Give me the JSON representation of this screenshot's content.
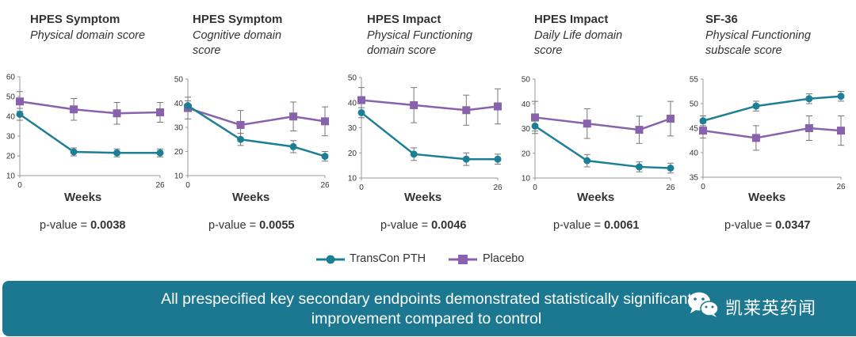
{
  "colors": {
    "transcon": "#1d7f96",
    "placebo": "#8862ad",
    "axis": "#999999",
    "text": "#333333",
    "banner": "#1c7891"
  },
  "chart_data": [
    {
      "type": "line",
      "title": "HPES Symptom",
      "subtitle": "Physical domain score",
      "xlabel": "Weeks",
      "xticks": [
        "0",
        "26"
      ],
      "ylim": [
        10,
        60
      ],
      "yticks": [
        10,
        20,
        30,
        40,
        50,
        60
      ],
      "p_label": "p-value =",
      "p_value": "0.0038",
      "series": [
        {
          "name": "TransCon PTH",
          "x": [
            0,
            10,
            18,
            26
          ],
          "values": [
            41,
            22,
            21.5,
            21.5
          ],
          "err": [
            3,
            2,
            2,
            2
          ]
        },
        {
          "name": "Placebo",
          "x": [
            0,
            10,
            18,
            26
          ],
          "values": [
            47.5,
            43.5,
            41.5,
            42
          ],
          "err": [
            5,
            5.5,
            5.5,
            5
          ]
        }
      ]
    },
    {
      "type": "line",
      "title": "HPES Symptom",
      "subtitle": "Cognitive domain score",
      "xlabel": "Weeks",
      "xticks": [
        "0",
        "26"
      ],
      "ylim": [
        10,
        50
      ],
      "yticks": [
        10,
        20,
        30,
        40,
        50
      ],
      "p_label": "p-value =",
      "p_value": "0.0055",
      "series": [
        {
          "name": "TransCon PTH",
          "x": [
            0,
            10,
            20,
            26
          ],
          "values": [
            39,
            25,
            22,
            18
          ],
          "err": [
            2,
            2.5,
            2.5,
            2
          ]
        },
        {
          "name": "Placebo",
          "x": [
            0,
            10,
            20,
            26
          ],
          "values": [
            38,
            31,
            34.5,
            32.5
          ],
          "err": [
            4.5,
            6,
            6,
            6
          ]
        }
      ]
    },
    {
      "type": "line",
      "title": "HPES Impact",
      "subtitle": "Physical Functioning domain score",
      "xlabel": "Weeks",
      "xticks": [
        "0",
        "26"
      ],
      "ylim": [
        10,
        50
      ],
      "yticks": [
        10,
        20,
        30,
        40,
        50
      ],
      "p_label": "p-value =",
      "p_value": "0.0046",
      "series": [
        {
          "name": "TransCon PTH",
          "x": [
            0,
            10,
            20,
            26
          ],
          "values": [
            36,
            19.5,
            17.5,
            17.5
          ],
          "err": [
            2,
            2.5,
            2.5,
            2
          ]
        },
        {
          "name": "Placebo",
          "x": [
            0,
            10,
            20,
            26
          ],
          "values": [
            41,
            39,
            37,
            38.5
          ],
          "err": [
            5,
            7,
            6,
            7
          ]
        }
      ]
    },
    {
      "type": "line",
      "title": "HPES Impact",
      "subtitle": "Daily Life domain score",
      "xlabel": "Weeks",
      "xticks": [
        "0",
        "26"
      ],
      "ylim": [
        10,
        50
      ],
      "yticks": [
        10,
        20,
        30,
        40,
        50
      ],
      "p_label": "p-value =",
      "p_value": "0.0061",
      "series": [
        {
          "name": "TransCon PTH",
          "x": [
            0,
            10,
            20,
            26
          ],
          "values": [
            31,
            17,
            14.5,
            14
          ],
          "err": [
            2,
            2.5,
            2,
            2
          ]
        },
        {
          "name": "Placebo",
          "x": [
            0,
            10,
            20,
            26
          ],
          "values": [
            34.5,
            32,
            29.5,
            34
          ],
          "err": [
            6.5,
            6,
            5.5,
            7
          ]
        }
      ]
    },
    {
      "type": "line",
      "title": "SF-36",
      "subtitle": "Physical Functioning subscale score",
      "xlabel": "Weeks",
      "xticks": [
        "0",
        "26"
      ],
      "ylim": [
        35,
        55
      ],
      "yticks": [
        35,
        40,
        45,
        50,
        55
      ],
      "p_label": "p-value =",
      "p_value": "0.0347",
      "series": [
        {
          "name": "TransCon PTH",
          "x": [
            0,
            10,
            20,
            26
          ],
          "values": [
            46.5,
            49.5,
            51,
            51.5
          ],
          "err": [
            1,
            1,
            1,
            1
          ]
        },
        {
          "name": "Placebo",
          "x": [
            0,
            10,
            20,
            26
          ],
          "values": [
            44.5,
            43,
            45,
            44.5
          ],
          "err": [
            1.5,
            2.5,
            2.5,
            3
          ]
        }
      ]
    }
  ],
  "legend": {
    "items": [
      "TransCon PTH",
      "Placebo"
    ]
  },
  "banner": {
    "text": "All prespecified key secondary endpoints demonstrated statistically significant improvement compared to control"
  },
  "watermark": {
    "text": "凯莱英药闻"
  }
}
